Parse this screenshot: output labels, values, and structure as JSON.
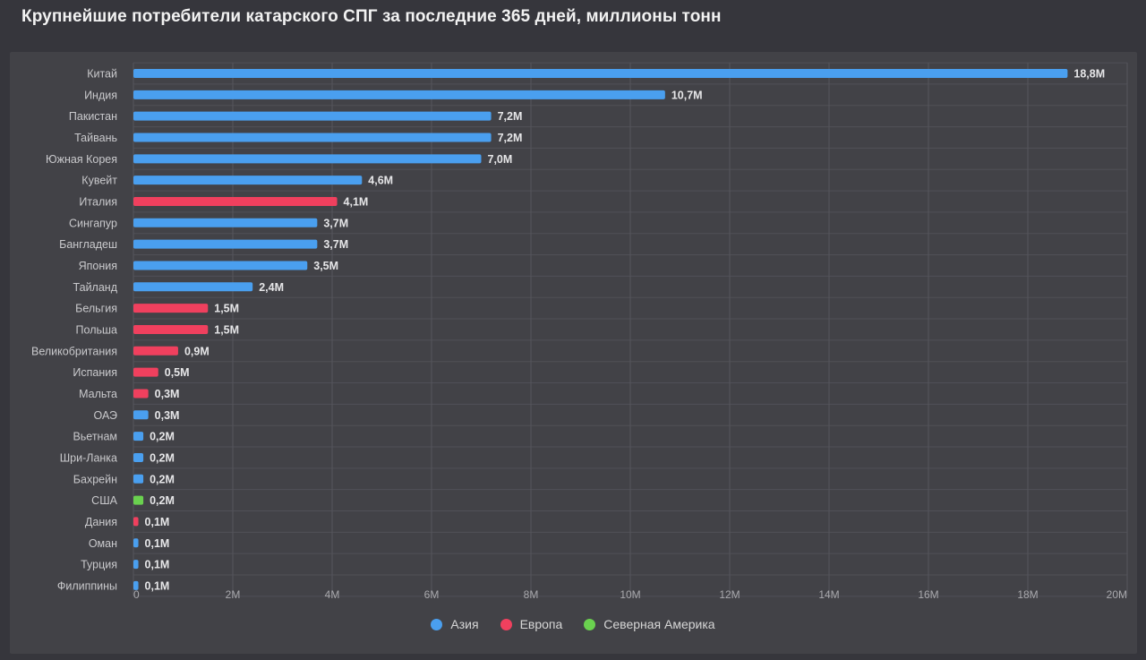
{
  "title": "Крупнейшие потребители катарского СПГ за последние 365 дней, миллионы тонн",
  "colors": {
    "Азия": "#4a9fef",
    "Европа": "#f0405e",
    "Северная Америка": "#6ad14f"
  },
  "legend": [
    {
      "name": "Азия",
      "color": "#4a9fef"
    },
    {
      "name": "Европа",
      "color": "#f0405e"
    },
    {
      "name": "Северная Америка",
      "color": "#6ad14f"
    }
  ],
  "chart_data": {
    "type": "bar",
    "orientation": "horizontal",
    "title": "Крупнейшие потребители катарского СПГ за последние 365 дней, миллионы тонн",
    "xlim": [
      0,
      20
    ],
    "x_ticks": [
      "0",
      "2M",
      "4M",
      "6M",
      "8M",
      "10M",
      "12M",
      "14M",
      "16M",
      "18M",
      "20M"
    ],
    "grid": true,
    "legend_placement": "bottom-center",
    "categories": [
      "Китай",
      "Индия",
      "Пакистан",
      "Тайвань",
      "Южная Корея",
      "Кувейт",
      "Италия",
      "Сингапур",
      "Бангладеш",
      "Япония",
      "Тайланд",
      "Бельгия",
      "Польша",
      "Великобритания",
      "Испания",
      "Мальта",
      "ОАЭ",
      "Вьетнам",
      "Шри-Ланка",
      "Бахрейн",
      "США",
      "Дания",
      "Оман",
      "Турция",
      "Филиппины"
    ],
    "values": [
      18.8,
      10.7,
      7.2,
      7.2,
      7.0,
      4.6,
      4.1,
      3.7,
      3.7,
      3.5,
      2.4,
      1.5,
      1.5,
      0.9,
      0.5,
      0.3,
      0.3,
      0.2,
      0.2,
      0.2,
      0.2,
      0.1,
      0.1,
      0.1,
      0.1
    ],
    "labels": [
      "18,8M",
      "10,7M",
      "7,2M",
      "7,2M",
      "7,0M",
      "4,6M",
      "4,1M",
      "3,7M",
      "3,7M",
      "3,5M",
      "2,4M",
      "1,5M",
      "1,5M",
      "0,9M",
      "0,5M",
      "0,3M",
      "0,3M",
      "0,2M",
      "0,2M",
      "0,2M",
      "0,2M",
      "0,1M",
      "0,1M",
      "0,1M",
      "0,1M"
    ],
    "regions": [
      "Азия",
      "Азия",
      "Азия",
      "Азия",
      "Азия",
      "Азия",
      "Европа",
      "Азия",
      "Азия",
      "Азия",
      "Азия",
      "Европа",
      "Европа",
      "Европа",
      "Европа",
      "Европа",
      "Азия",
      "Азия",
      "Азия",
      "Азия",
      "Северная Америка",
      "Европа",
      "Азия",
      "Азия",
      "Азия"
    ]
  }
}
